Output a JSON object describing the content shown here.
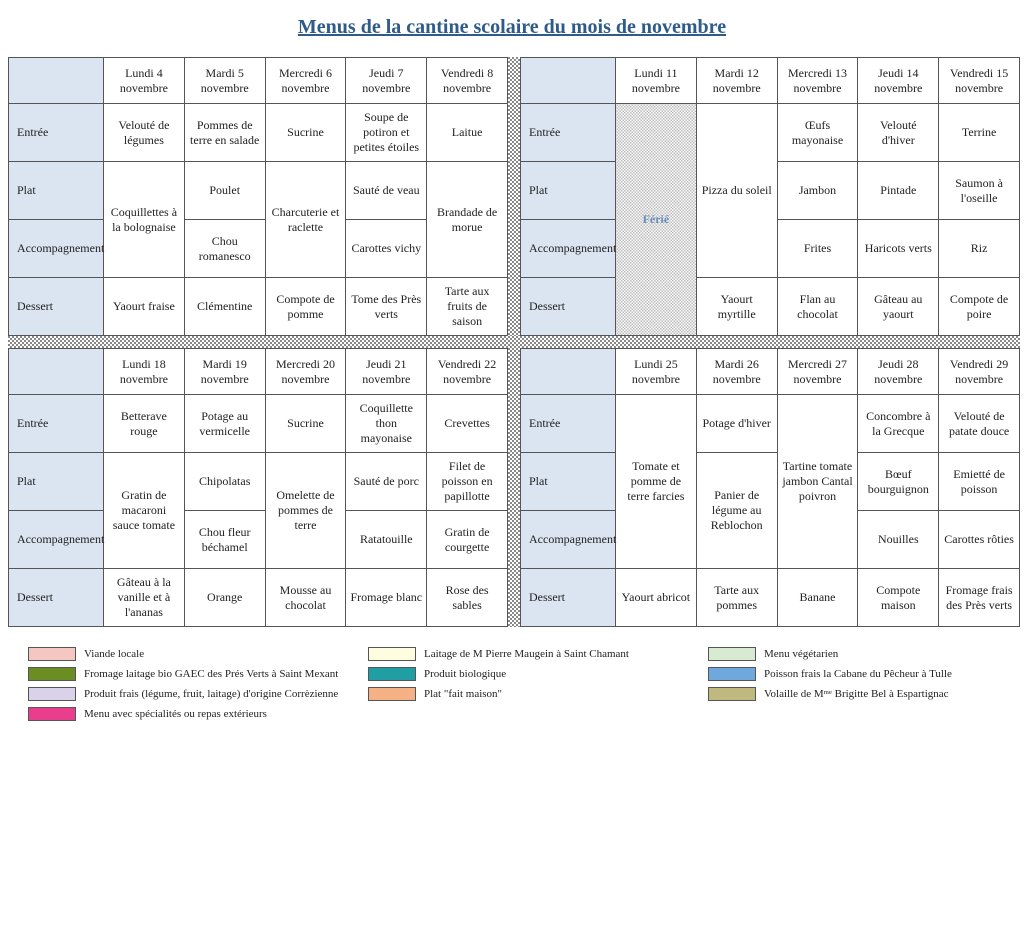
{
  "title": "Menus de la cantine scolaire du mois de novembre",
  "colors": {
    "title": "#2e5b8a",
    "header_bg": "#dbe5f1",
    "border": "#555555",
    "divider_pattern_dark": "#888888",
    "ferie_text": "#6a8ebf"
  },
  "row_labels": [
    "Entrée",
    "Plat",
    "Accompagnement",
    "Dessert"
  ],
  "ferie_label": "Férié",
  "weeks": [
    {
      "headers": [
        "Lundi 4 novembre",
        "Mardi 5 novembre",
        "Mercredi 6 novembre",
        "Jeudi 7 novembre",
        "Vendredi 8 novembre"
      ],
      "days": [
        {
          "entree": "Velouté de légumes",
          "plat": "Coquillettes à la bolognaise",
          "acc": "",
          "dessert": "Yaourt fraise",
          "merge_plat_acc": true
        },
        {
          "entree": "Pommes de terre en salade",
          "plat": "Poulet",
          "acc": "Chou romanesco",
          "dessert": "Clémentine"
        },
        {
          "entree": "Sucrine",
          "plat": "Charcuterie et raclette",
          "acc": "",
          "dessert": "Compote de pomme",
          "merge_plat_acc": true
        },
        {
          "entree": "Soupe de potiron et petites étoiles",
          "plat": "Sauté de veau",
          "acc": "Carottes vichy",
          "dessert": "Tome des Près verts"
        },
        {
          "entree": "Laitue",
          "plat": "Brandade de morue",
          "acc": "",
          "dessert": "Tarte aux fruits de saison",
          "merge_plat_acc": true
        }
      ]
    },
    {
      "headers": [
        "Lundi 11 novembre",
        "Mardi 12 novembre",
        "Mercredi 13 novembre",
        "Jeudi 14 novembre",
        "Vendredi 15 novembre"
      ],
      "days": [
        {
          "ferie": true
        },
        {
          "entree": "",
          "plat": "Pizza du soleil",
          "acc": "",
          "dessert": "Yaourt myrtille",
          "merge_entree_plat_acc": true
        },
        {
          "entree": "Œufs mayonaise",
          "plat": "Jambon",
          "acc": "Frites",
          "dessert": "Flan au chocolat"
        },
        {
          "entree": "Velouté d'hiver",
          "plat": "Pintade",
          "acc": "Haricots verts",
          "dessert": "Gâteau au yaourt"
        },
        {
          "entree": "Terrine",
          "plat": "Saumon à l'oseille",
          "acc": "Riz",
          "dessert": "Compote de poire"
        }
      ]
    },
    {
      "headers": [
        "Lundi 18 novembre",
        "Mardi 19 novembre",
        "Mercredi 20 novembre",
        "Jeudi 21 novembre",
        "Vendredi 22 novembre"
      ],
      "days": [
        {
          "entree": "Betterave rouge",
          "plat": "Gratin de macaroni sauce tomate",
          "acc": "",
          "dessert": "Gâteau à la vanille et à l'ananas",
          "merge_plat_acc": true
        },
        {
          "entree": "Potage au vermicelle",
          "plat": "Chipolatas",
          "acc": "Chou fleur béchamel",
          "dessert": "Orange"
        },
        {
          "entree": "Sucrine",
          "plat": "Omelette de pommes de terre",
          "acc": "",
          "dessert": "Mousse au chocolat",
          "merge_plat_acc": true
        },
        {
          "entree": "Coquillette thon mayonaise",
          "plat": "Sauté de porc",
          "acc": "Ratatouille",
          "dessert": "Fromage blanc"
        },
        {
          "entree": "Crevettes",
          "plat": "Filet de poisson en papillotte",
          "acc": "Gratin de courgette",
          "dessert": "Rose des sables"
        }
      ]
    },
    {
      "headers": [
        "Lundi 25 novembre",
        "Mardi 26 novembre",
        "Mercredi 27 novembre",
        "Jeudi 28 novembre",
        "Vendredi 29 novembre"
      ],
      "days": [
        {
          "entree": "",
          "plat": "Tomate et pomme de terre farcies",
          "acc": "",
          "dessert": "Yaourt abricot",
          "merge_entree_plat_acc": true
        },
        {
          "entree": "Potage d'hiver",
          "plat": "Panier de légume au Reblochon",
          "acc": "",
          "dessert": "Tarte aux pommes",
          "merge_plat_acc": true
        },
        {
          "entree": "",
          "plat": "Tartine tomate jambon Cantal poivron",
          "acc": "",
          "dessert": "Banane",
          "merge_entree_plat_acc": true
        },
        {
          "entree": "Concombre à la Grecque",
          "plat": "Bœuf bourguignon",
          "acc": "Nouilles",
          "dessert": "Compote maison"
        },
        {
          "entree": "Velouté de patate douce",
          "plat": "Emietté de poisson",
          "acc": "Carottes rôties",
          "dessert": "Fromage frais des Près verts"
        }
      ]
    }
  ],
  "legend": [
    {
      "color": "#f4c7c3",
      "label": "Viande locale"
    },
    {
      "color": "#fefde0",
      "label": "Laitage de M Pierre Maugein à Saint Chamant"
    },
    {
      "color": "#d9ead3",
      "label": "Menu végétarien"
    },
    {
      "color": "#6b8e23",
      "label": "Fromage laitage bio GAEC des Prés Verts à Saint Mexant"
    },
    {
      "color": "#1f9ea3",
      "label": "Produit biologique"
    },
    {
      "color": "#6fa8dc",
      "label": "Poisson frais la Cabane du Pêcheur à Tulle"
    },
    {
      "color": "#d9d2e9",
      "label": "Produit frais (légume, fruit, laitage) d'origine Corrèzienne"
    },
    {
      "color": "#f4b183",
      "label": "Plat \"fait maison\""
    },
    {
      "color": "#bfb97f",
      "label": "Volaille de Mᵐᵉ Brigitte Bel à Espartignac"
    },
    {
      "color": "#e83e8c",
      "label": "Menu avec spécialités ou repas extérieurs"
    }
  ]
}
